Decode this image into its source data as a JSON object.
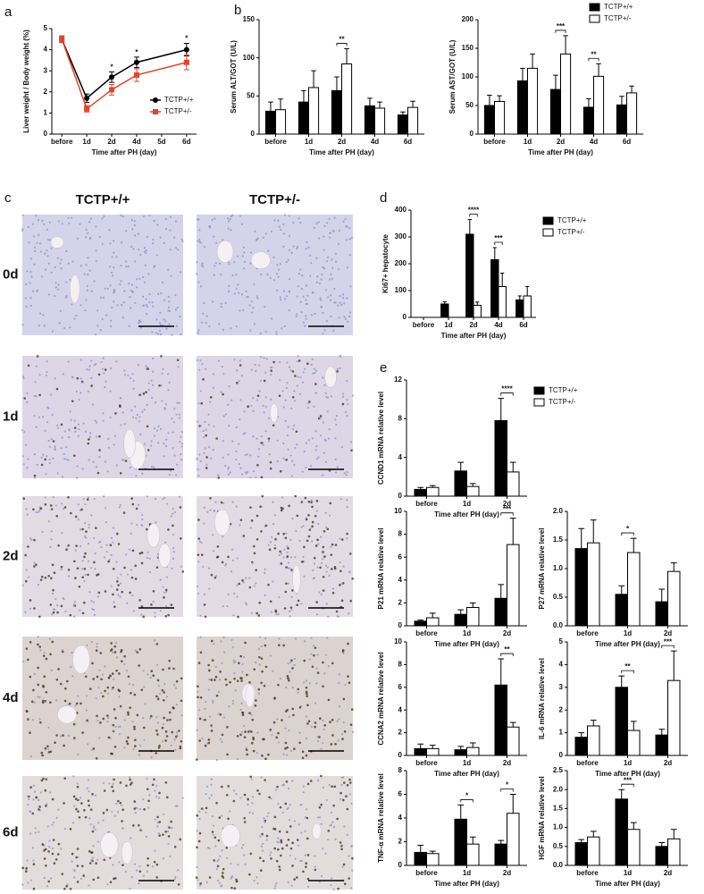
{
  "chart_data": [
    {
      "type": "line",
      "panel": "a",
      "ylabel": "Liver weight / Body weight (%)",
      "xlabel": "Time after PH (day)",
      "xlim": [
        -0.4,
        5.4
      ],
      "xticks": [
        {
          "value": 0,
          "label": "before"
        },
        {
          "value": 1,
          "label": "1d"
        },
        {
          "value": 2,
          "label": "2d"
        },
        {
          "value": 3,
          "label": "4d"
        },
        {
          "value": 4,
          "label": "5d"
        },
        {
          "value": 5,
          "label": "6d"
        }
      ],
      "ylim": [
        0,
        5
      ],
      "yticks": [
        0,
        1,
        2,
        3,
        4,
        5
      ],
      "legend": "lower right",
      "series": [
        {
          "name": "TCTP+/+",
          "color": "#000000",
          "marker": "circle",
          "x": [
            0,
            1,
            2,
            3,
            5
          ],
          "values": [
            4.5,
            1.7,
            2.7,
            3.4,
            4.0
          ],
          "errors": [
            0.15,
            0.2,
            0.25,
            0.25,
            0.3
          ]
        },
        {
          "name": "TCTP+/-",
          "color": "#e0452c",
          "marker": "square",
          "x": [
            0,
            1,
            2,
            3,
            5
          ],
          "values": [
            4.5,
            1.2,
            2.1,
            2.8,
            3.4
          ],
          "errors": [
            0.15,
            0.15,
            0.25,
            0.3,
            0.35
          ]
        }
      ],
      "annotations": [
        {
          "text": "*",
          "x": 2
        },
        {
          "text": "*",
          "x": 3
        },
        {
          "text": "*",
          "x": 5
        }
      ]
    },
    {
      "type": "bar",
      "panel": "b",
      "ylabel": "Serum ALT/GOT (U/L)",
      "xlabel": "Time after PH (day)",
      "categories": [
        "before",
        "1d",
        "2d",
        "4d",
        "6d"
      ],
      "ylim": [
        0,
        150
      ],
      "yticks": [
        0,
        50,
        100,
        150
      ],
      "series": [
        {
          "color": "#000000",
          "values": [
            30,
            42,
            57,
            37,
            25
          ],
          "errors": [
            12,
            15,
            18,
            10,
            4
          ]
        },
        {
          "color": "#ffffff",
          "values": [
            32,
            61,
            92,
            34,
            35
          ],
          "errors": [
            14,
            22,
            20,
            8,
            8
          ]
        }
      ],
      "annotations": [
        {
          "text": "**",
          "at": "2d"
        }
      ]
    },
    {
      "type": "bar",
      "ylabel": "Serum AST/GOT (U/L)",
      "xlabel": "Time after PH (day)",
      "categories": [
        "before",
        "1d",
        "2d",
        "4d",
        "6d"
      ],
      "ylim": [
        0,
        200
      ],
      "yticks": [
        0,
        50,
        100,
        150,
        200
      ],
      "legend": "upper right",
      "series": [
        {
          "name": "TCTP+/+",
          "color": "#000000",
          "values": [
            50,
            93,
            78,
            47,
            51
          ],
          "errors": [
            18,
            22,
            25,
            15,
            15
          ]
        },
        {
          "name": "TCTP+/-",
          "color": "#ffffff",
          "values": [
            57,
            115,
            140,
            101,
            72
          ],
          "errors": [
            10,
            25,
            32,
            22,
            12
          ]
        }
      ],
      "annotations": [
        {
          "text": "***",
          "at": "2d"
        },
        {
          "text": "**",
          "at": "4d"
        }
      ]
    },
    {
      "type": "bar",
      "panel": "d",
      "ylabel": "Ki67+ hepatocyte",
      "xlabel": "Time after PH (day)",
      "categories": [
        "before",
        "1d",
        "2d",
        "4d",
        "6d"
      ],
      "ylim": [
        0,
        400
      ],
      "yticks": [
        0,
        100,
        200,
        300,
        400
      ],
      "legend": "right",
      "series": [
        {
          "name": "TCTP+/+",
          "color": "#000000",
          "values": [
            0,
            50,
            310,
            215,
            65
          ],
          "errors": [
            0,
            8,
            55,
            45,
            15
          ]
        },
        {
          "name": "TCTP+/-",
          "color": "#ffffff",
          "values": [
            0,
            0,
            45,
            115,
            80
          ],
          "errors": [
            0,
            0,
            12,
            50,
            35
          ]
        }
      ],
      "annotations": [
        {
          "text": "****",
          "at": "2d"
        },
        {
          "text": "***",
          "at": "4d"
        }
      ]
    },
    {
      "type": "bar",
      "panel": "e",
      "ylabel": "CCND1 mRNA relative level",
      "xlabel": "Time after PH (day)",
      "categories": [
        "before",
        "1d",
        "2d"
      ],
      "ylim": [
        0,
        12
      ],
      "yticks": [
        0,
        4,
        8,
        12
      ],
      "legend": "right",
      "series": [
        {
          "name": "TCTP+/+",
          "color": "#000000",
          "values": [
            0.7,
            2.6,
            7.8
          ],
          "errors": [
            0.2,
            0.9,
            2.3
          ]
        },
        {
          "name": "TCTP+/-",
          "color": "#ffffff",
          "values": [
            0.9,
            1.0,
            2.5
          ],
          "errors": [
            0.2,
            0.3,
            1.0
          ]
        }
      ],
      "annotations": [
        {
          "text": "****",
          "at": "2d"
        }
      ]
    },
    {
      "type": "bar",
      "ylabel": "P21 mRNA relative level",
      "xlabel": "Time after PH (day)",
      "categories": [
        "before",
        "1d",
        "2d"
      ],
      "ylim": [
        0,
        10
      ],
      "yticks": [
        0,
        2,
        4,
        6,
        8,
        10
      ],
      "series": [
        {
          "color": "#000000",
          "values": [
            0.4,
            1.0,
            2.4
          ],
          "errors": [
            0.1,
            0.4,
            1.2
          ]
        },
        {
          "color": "#ffffff",
          "values": [
            0.7,
            1.6,
            7.1
          ],
          "errors": [
            0.4,
            0.4,
            2.3
          ]
        }
      ],
      "annotations": [
        {
          "text": "***",
          "at": "2d"
        }
      ]
    },
    {
      "type": "bar",
      "ylabel": "P27 mRNA relative level",
      "xlabel": "Time after PH (day)",
      "categories": [
        "before",
        "1d",
        "2d"
      ],
      "ylim": [
        0,
        2
      ],
      "yticks": [
        {
          "value": 0,
          "label": "0.0"
        },
        0.5,
        {
          "value": 1,
          "label": "1.0"
        },
        1.5,
        {
          "value": 2,
          "label": "2.0"
        }
      ],
      "series": [
        {
          "color": "#000000",
          "values": [
            1.35,
            0.55,
            0.42
          ],
          "errors": [
            0.35,
            0.15,
            0.22
          ]
        },
        {
          "color": "#ffffff",
          "values": [
            1.45,
            1.28,
            0.95
          ],
          "errors": [
            0.4,
            0.25,
            0.15
          ]
        }
      ],
      "annotations": [
        {
          "text": "*",
          "at": "1d"
        }
      ]
    },
    {
      "type": "bar",
      "ylabel": "CCNA2 mRNA relative level",
      "xlabel": "Time after PH (day)",
      "categories": [
        "before",
        "1d",
        "2d"
      ],
      "ylim": [
        0,
        10
      ],
      "yticks": [
        0,
        2,
        4,
        6,
        8,
        10
      ],
      "series": [
        {
          "color": "#000000",
          "values": [
            0.6,
            0.5,
            6.2
          ],
          "errors": [
            0.4,
            0.3,
            2.3
          ]
        },
        {
          "color": "#ffffff",
          "values": [
            0.6,
            0.7,
            2.5
          ],
          "errors": [
            0.3,
            0.4,
            0.4
          ]
        }
      ],
      "annotations": [
        {
          "text": "**",
          "at": "2d"
        }
      ]
    },
    {
      "type": "bar",
      "ylabel": "IL-6 mRNA relative level",
      "xlabel": "Time after PH (day)",
      "categories": [
        "before",
        "1d",
        "2d"
      ],
      "ylim": [
        0,
        5
      ],
      "yticks": [
        0,
        1,
        2,
        3,
        4,
        5
      ],
      "series": [
        {
          "color": "#000000",
          "values": [
            0.8,
            3.0,
            0.9
          ],
          "errors": [
            0.2,
            0.5,
            0.25
          ]
        },
        {
          "color": "#ffffff",
          "values": [
            1.3,
            1.1,
            3.3
          ],
          "errors": [
            0.25,
            0.4,
            1.3
          ]
        }
      ],
      "annotations": [
        {
          "text": "**",
          "at": "1d"
        },
        {
          "text": "***",
          "at": "2d"
        }
      ]
    },
    {
      "type": "bar",
      "ylabel": "TNF-α mRNA relative level",
      "xlabel": "Time after PH (day)",
      "categories": [
        "before",
        "1d",
        "2d"
      ],
      "ylim": [
        0,
        8
      ],
      "yticks": [
        0,
        2,
        4,
        6,
        8
      ],
      "series": [
        {
          "color": "#000000",
          "values": [
            1.1,
            3.9,
            1.8
          ],
          "errors": [
            0.6,
            1.2,
            0.3
          ]
        },
        {
          "color": "#ffffff",
          "values": [
            1.0,
            1.8,
            4.4
          ],
          "errors": [
            0.2,
            0.6,
            1.6
          ]
        }
      ],
      "annotations": [
        {
          "text": "*",
          "at": "1d"
        },
        {
          "text": "*",
          "at": "2d"
        }
      ]
    },
    {
      "type": "bar",
      "ylabel": "HGF mRNA relative level",
      "xlabel": "Time after PH (day)",
      "categories": [
        "before",
        "1d",
        "2d"
      ],
      "ylim": [
        0,
        2.5
      ],
      "yticks": [
        {
          "value": 0,
          "label": "0.0"
        },
        0.5,
        {
          "value": 1,
          "label": "1.0"
        },
        1.5,
        {
          "value": 2,
          "label": "2.0"
        },
        2.5
      ],
      "series": [
        {
          "color": "#000000",
          "values": [
            0.6,
            1.75,
            0.5
          ],
          "errors": [
            0.08,
            0.25,
            0.1
          ]
        },
        {
          "color": "#ffffff",
          "values": [
            0.75,
            0.95,
            0.7
          ],
          "errors": [
            0.15,
            0.18,
            0.25
          ]
        }
      ],
      "annotations": [
        {
          "text": "***",
          "at": "1d"
        }
      ]
    }
  ],
  "histology": {
    "panel": "c",
    "columns": [
      "TCTP+/+",
      "TCTP+/-"
    ],
    "rows": [
      "0d",
      "1d",
      "2d",
      "4d",
      "6d"
    ]
  }
}
